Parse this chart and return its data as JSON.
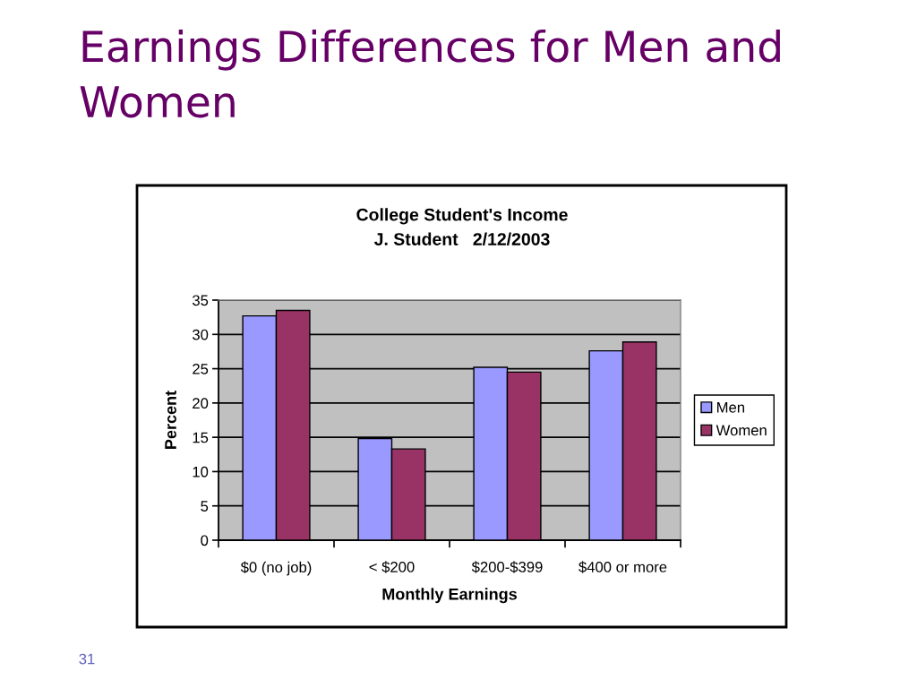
{
  "chart_data": {
    "type": "bar",
    "title": "Earnings Differences for Men and Women",
    "subtitle": "College Student's Income\nJ. Student   2/12/2003",
    "xlabel": "Monthly Earnings",
    "ylabel": "Percent",
    "categories": [
      "$0 (no job)",
      "< $200",
      "$200-$399",
      "$400 or more"
    ],
    "series": [
      {
        "name": "Men",
        "color": "#9999ff",
        "values": [
          32.7,
          14.8,
          25.2,
          27.6
        ]
      },
      {
        "name": "Women",
        "color": "#993366",
        "values": [
          33.5,
          13.3,
          24.5,
          28.9
        ]
      }
    ],
    "ylim": [
      0,
      35
    ],
    "yticks": [
      0,
      5,
      10,
      15,
      20,
      25,
      30,
      35
    ],
    "grid": "y",
    "legend": "right",
    "annotations": [
      "31"
    ]
  }
}
